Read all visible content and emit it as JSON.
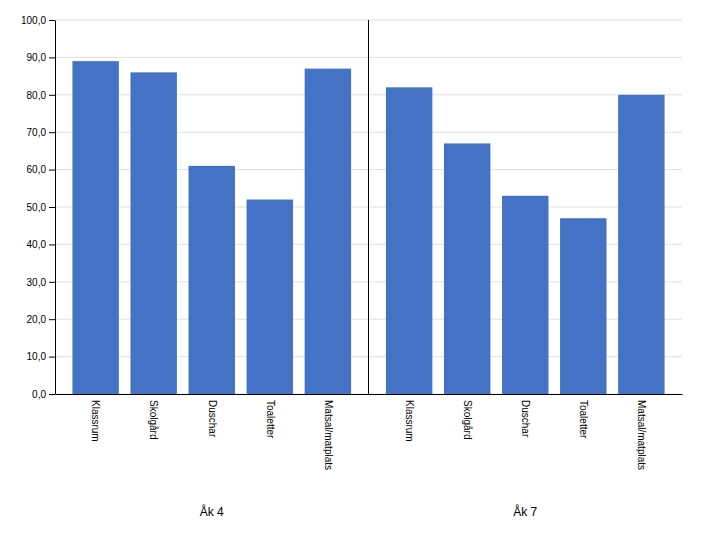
{
  "chart_data": {
    "type": "bar",
    "categories": [
      "Klassrum",
      "Skolgård",
      "Duschar",
      "Toaletter",
      "Matsal/matplats"
    ],
    "series": [
      {
        "name": "Åk 4",
        "color": "#4472C4",
        "values": [
          89.0,
          86.0,
          61.0,
          52.0,
          87.0
        ]
      },
      {
        "name": "Åk 7",
        "color": "#4472C4",
        "values": [
          82.0,
          67.0,
          53.0,
          47.0,
          80.0
        ]
      }
    ],
    "ylim": [
      0,
      100
    ],
    "yticks": [
      {
        "value": 0,
        "label": "0,0"
      },
      {
        "value": 10,
        "label": "10,0"
      },
      {
        "value": 20,
        "label": "20,0"
      },
      {
        "value": 30,
        "label": "30,0"
      },
      {
        "value": 40,
        "label": "40,0"
      },
      {
        "value": 50,
        "label": "50,0"
      },
      {
        "value": 60,
        "label": "60,0"
      },
      {
        "value": 70,
        "label": "70,0"
      },
      {
        "value": 80,
        "label": "80,0"
      },
      {
        "value": 90,
        "label": "90,0"
      },
      {
        "value": 100,
        "label": "100,0"
      }
    ],
    "grid": true
  }
}
